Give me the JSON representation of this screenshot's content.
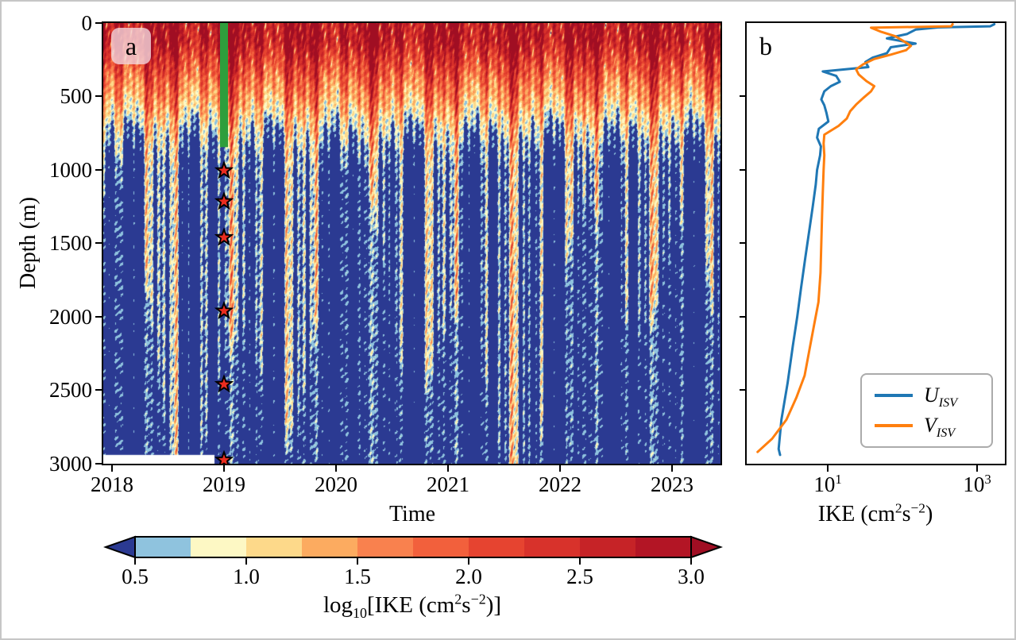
{
  "figure": {
    "background": "#ffffff",
    "frame_color": "#c6c6c6",
    "text_color": "#000000"
  },
  "panel_a": {
    "label": "a",
    "xlabel": "Time",
    "ylabel": "Depth (m)",
    "x_ticks": [
      "2018",
      "2019",
      "2020",
      "2021",
      "2022",
      "2023"
    ],
    "y_ticks": [
      "0",
      "500",
      "1000",
      "1500",
      "2000",
      "2500",
      "3000"
    ],
    "annotations": {
      "green_bar": {
        "time": 2019.0,
        "depth_top_m": 0,
        "depth_bottom_m": 845,
        "color": "#2e9e3c"
      },
      "stars": {
        "time": 2019.0,
        "depths_m": [
          1005,
          1215,
          1460,
          1960,
          2460,
          2975
        ],
        "fill": "#ea2c1f",
        "edge": "#000000"
      },
      "missing_data_gap": {
        "before_time": 2019.0,
        "below_depth_m": 2940,
        "color": "#ffffff"
      }
    }
  },
  "panel_b": {
    "label": "b",
    "xlabel_parts": {
      "p1": "IKE (cm",
      "e1": "2",
      "p2": "s",
      "e2": "−2",
      "p3": ")"
    },
    "x_ticks": [
      {
        "base": "10",
        "exp": "1"
      },
      {
        "base": "10",
        "exp": "3"
      }
    ],
    "legend": [
      {
        "name": "U",
        "sub": "ISV",
        "color": "#1f77b4"
      },
      {
        "name": "V",
        "sub": "ISV",
        "color": "#ff7f0e"
      }
    ]
  },
  "colorbar": {
    "ticks": [
      "0.5",
      "1.0",
      "1.5",
      "2.0",
      "2.5",
      "3.0"
    ],
    "levels": [
      0.5,
      0.75,
      1.0,
      1.25,
      1.5,
      1.75,
      2.0,
      2.25,
      2.5,
      2.75,
      3.0
    ],
    "segment_colors": [
      "#8fc3de",
      "#fdf8c4",
      "#fdd98a",
      "#fcab60",
      "#f9814e",
      "#f2603c",
      "#e64430",
      "#d8322b",
      "#c62327",
      "#b31525"
    ],
    "under_color": "#2b3a92",
    "over_color": "#a00e23",
    "title_parts": {
      "t1": "log",
      "s1": "10",
      "t2": "[IKE (cm",
      "e1": "2",
      "t3": "s",
      "e2": "−2",
      "t4": ")]"
    }
  },
  "chart_data": [
    {
      "type": "heatmap",
      "panel": "a",
      "xlabel": "Time",
      "ylabel": "Depth (m)",
      "x_range_years": [
        2017.92,
        2023.43
      ],
      "y_range_m": [
        0,
        3000
      ],
      "value": "log10[IKE (cm2 s-2)]",
      "value_range": [
        0.5,
        3.0
      ],
      "level_step": 0.25,
      "description": "Depth-time section of intraseasonal kinetic energy; dark-red high-energy band in upper ~250 m, orange streaks to ~800 m, deep region mostly dark blue with intermittent vertical cream/orange streaks reaching the bottom; white gap lower-left before 2019 below ~2940 m",
      "depth_mean_log10_ike": {
        "depths_m": [
          0,
          120,
          250,
          400,
          550,
          700,
          850,
          1000,
          3000
        ],
        "values": [
          2.92,
          2.88,
          2.35,
          1.8,
          1.35,
          0.85,
          0.5,
          0.32,
          0.26
        ]
      },
      "overlays": {
        "green_bar": {
          "time": 2019.0,
          "depth_span_m": [
            0,
            845
          ]
        },
        "star_markers_depths_m": [
          1005,
          1215,
          1460,
          1960,
          2460,
          2975
        ]
      }
    },
    {
      "type": "line",
      "panel": "b",
      "xlabel": "IKE (cm2 s-2)",
      "ylabel": "Depth (m)",
      "x_scale": "log10",
      "x_range": [
        0.82,
        2300
      ],
      "y_range_m": [
        0,
        3000
      ],
      "legend_position": "lower right",
      "series": [
        {
          "name": "U_ISV",
          "color": "#1f77b4",
          "points_depth_value": [
            [
              8,
              1700
            ],
            [
              22,
              1500
            ],
            [
              30,
              300
            ],
            [
              45,
              150
            ],
            [
              75,
              115
            ],
            [
              105,
              62
            ],
            [
              140,
              150
            ],
            [
              165,
              70
            ],
            [
              205,
              62
            ],
            [
              235,
              40
            ],
            [
              265,
              32
            ],
            [
              300,
              35
            ],
            [
              330,
              8.6
            ],
            [
              360,
              13
            ],
            [
              400,
              14.5
            ],
            [
              430,
              11
            ],
            [
              465,
              9.0
            ],
            [
              520,
              8.2
            ],
            [
              560,
              9.0
            ],
            [
              610,
              9.6
            ],
            [
              670,
              10.2
            ],
            [
              720,
              7.6
            ],
            [
              780,
              7.2
            ],
            [
              840,
              8.1
            ],
            [
              900,
              7.9
            ],
            [
              1000,
              7.2
            ],
            [
              1100,
              6.9
            ],
            [
              1250,
              6.3
            ],
            [
              1400,
              5.7
            ],
            [
              1600,
              5.0
            ],
            [
              1800,
              4.4
            ],
            [
              2000,
              3.9
            ],
            [
              2200,
              3.4
            ],
            [
              2450,
              2.9
            ],
            [
              2700,
              2.4
            ],
            [
              2900,
              2.2
            ],
            [
              2940,
              2.3
            ]
          ]
        },
        {
          "name": "V_ISV",
          "color": "#ff7f0e",
          "points_depth_value": [
            [
              8,
              470
            ],
            [
              22,
              450
            ],
            [
              32,
              38
            ],
            [
              60,
              52
            ],
            [
              90,
              80
            ],
            [
              125,
              105
            ],
            [
              155,
              130
            ],
            [
              185,
              112
            ],
            [
              215,
              70
            ],
            [
              245,
              42
            ],
            [
              280,
              30
            ],
            [
              315,
              24
            ],
            [
              350,
              26
            ],
            [
              395,
              33
            ],
            [
              430,
              42
            ],
            [
              465,
              38
            ],
            [
              510,
              30
            ],
            [
              555,
              24
            ],
            [
              600,
              20
            ],
            [
              650,
              18
            ],
            [
              700,
              14
            ],
            [
              760,
              9.0
            ],
            [
              820,
              8.8
            ],
            [
              900,
              9.0
            ],
            [
              1000,
              8.8
            ],
            [
              1150,
              8.6
            ],
            [
              1300,
              8.4
            ],
            [
              1500,
              8.2
            ],
            [
              1700,
              8.0
            ],
            [
              1900,
              7.5
            ],
            [
              2050,
              6.6
            ],
            [
              2200,
              5.8
            ],
            [
              2400,
              4.9
            ],
            [
              2550,
              3.8
            ],
            [
              2700,
              2.8
            ],
            [
              2830,
              1.8
            ],
            [
              2920,
              1.15
            ]
          ]
        }
      ]
    }
  ]
}
